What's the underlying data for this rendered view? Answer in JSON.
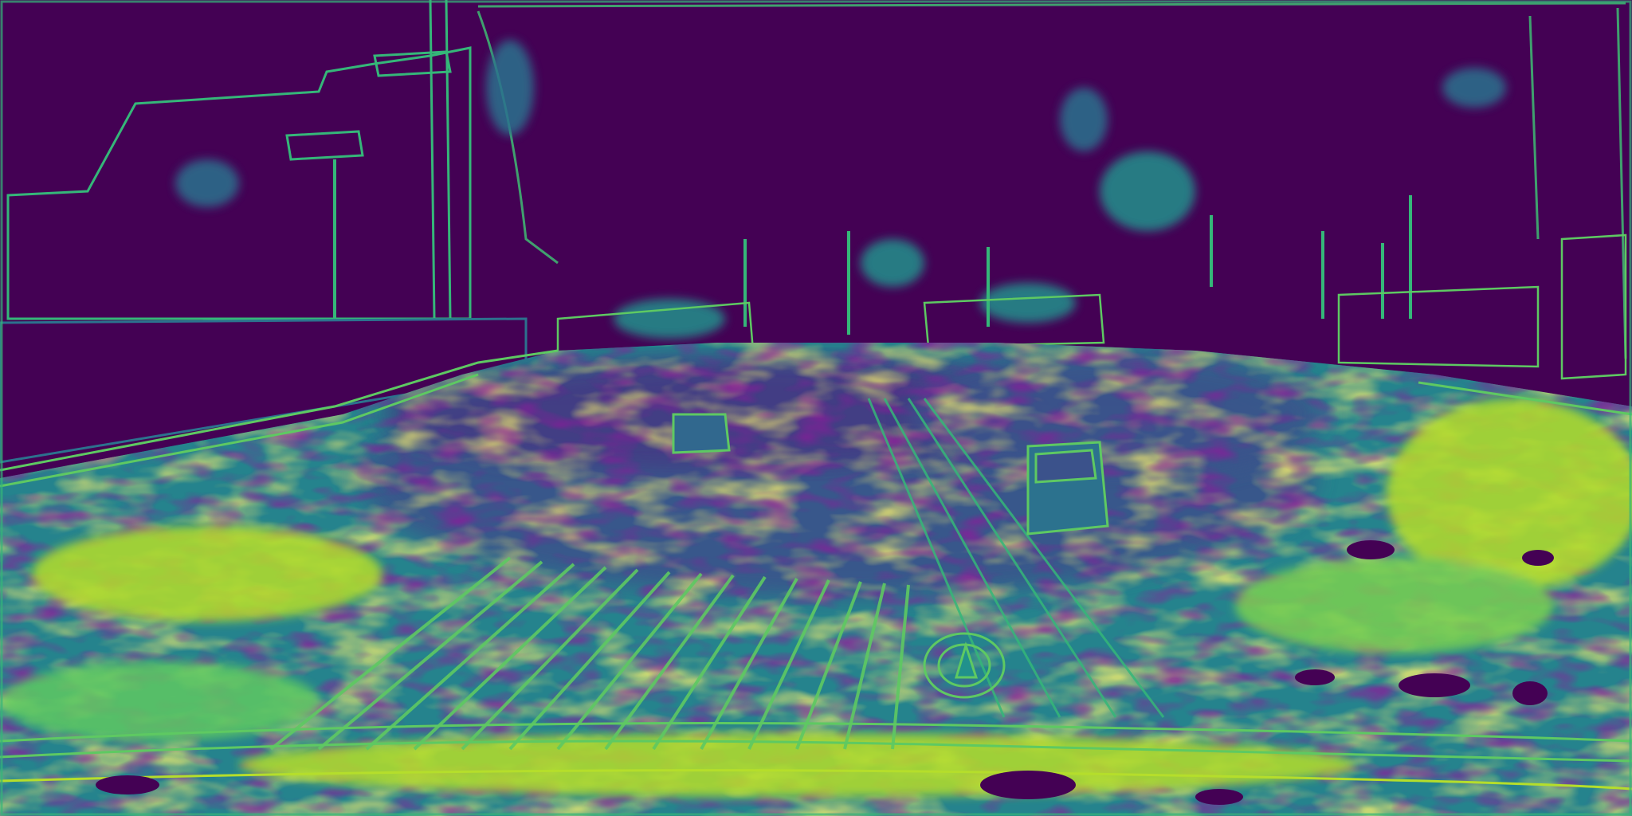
{
  "image": {
    "kind": "uncertainty heatmap of a street scene (viridis colormap)",
    "colormap": [
      "#440154",
      "#3b528b",
      "#21918c",
      "#5ec962",
      "#fde725"
    ],
    "background": "#440154",
    "text": []
  }
}
